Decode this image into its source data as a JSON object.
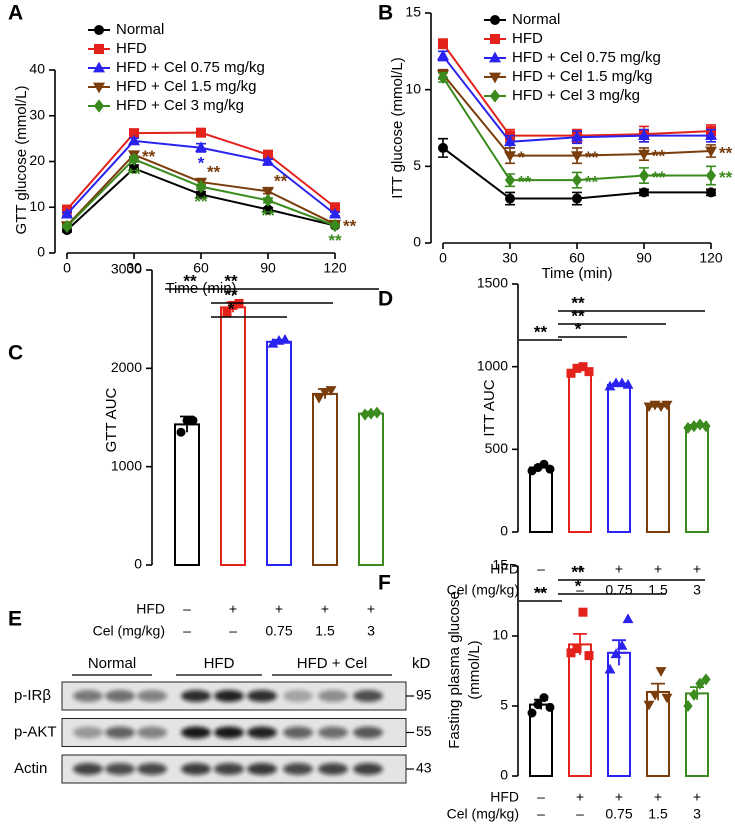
{
  "chart_data": [
    {
      "type": "line",
      "panel": "A",
      "ylabel": "GTT glucose (mmol/L)",
      "xlabel": "Time (min)",
      "x": [
        0,
        30,
        60,
        90,
        120
      ],
      "xlim": [
        0,
        120
      ],
      "xticks": [
        0,
        30,
        60,
        90,
        120
      ],
      "ylim": [
        0,
        40
      ],
      "yticks": [
        0,
        10,
        20,
        30,
        40
      ],
      "legend": "top-left",
      "series": [
        {
          "name": "Normal",
          "color": "#000000",
          "marker": "circle",
          "values": [
            5,
            18.5,
            12.8,
            9.5,
            6
          ],
          "errors": [
            0.4,
            0.7,
            0.6,
            0.4,
            0.3
          ]
        },
        {
          "name": "HFD",
          "color": "#e3221b",
          "marker": "square",
          "values": [
            9.5,
            26.2,
            26.3,
            21.5,
            10
          ],
          "errors": [
            0.4,
            0.6,
            0.5,
            0.5,
            0.4
          ]
        },
        {
          "name": "HFD + Cel 0.75 mg/kg",
          "color": "#2a23f0",
          "marker": "triangle",
          "values": [
            8.5,
            24.5,
            23,
            20,
            8.5
          ],
          "errors": [
            0.4,
            0.6,
            0.9,
            0.5,
            0.4
          ]
        },
        {
          "name": "HFD + Cel 1.5 mg/kg",
          "color": "#7a3d0c",
          "marker": "triangle-down",
          "values": [
            6,
            21.5,
            15.5,
            13.5,
            6.3
          ],
          "errors": [
            0.4,
            0.7,
            0.6,
            0.5,
            0.3
          ]
        },
        {
          "name": "HFD + Cel 3 mg/kg",
          "color": "#3a8a1e",
          "marker": "diamond",
          "values": [
            5.8,
            20.5,
            14.5,
            11.5,
            6
          ],
          "errors": [
            0.3,
            0.6,
            0.5,
            0.5,
            0.3
          ]
        }
      ],
      "annotations": [
        {
          "text": "**",
          "series": 3,
          "index": 1,
          "side": "right"
        },
        {
          "text": "**",
          "series": 4,
          "index": 1,
          "side": "below"
        },
        {
          "text": "*",
          "series": 2,
          "index": 2,
          "side": "below"
        },
        {
          "text": "**",
          "series": 3,
          "index": 2,
          "side": "above"
        },
        {
          "text": "**",
          "series": 4,
          "index": 2,
          "side": "below"
        },
        {
          "text": "**",
          "series": 3,
          "index": 3,
          "side": "above"
        },
        {
          "text": "**",
          "series": 4,
          "index": 3,
          "side": "below"
        },
        {
          "text": "**",
          "series": 3,
          "index": 4,
          "side": "right"
        },
        {
          "text": "**",
          "series": 4,
          "index": 4,
          "side": "below"
        }
      ]
    },
    {
      "type": "line",
      "panel": "B",
      "ylabel": "ITT glucose (mmol/L)",
      "xlabel": "Time (min)",
      "x": [
        0,
        30,
        60,
        90,
        120
      ],
      "xlim": [
        0,
        120
      ],
      "xticks": [
        0,
        30,
        60,
        90,
        120
      ],
      "ylim": [
        0,
        15
      ],
      "yticks": [
        0,
        5,
        10,
        15
      ],
      "legend": "top-left",
      "series": [
        {
          "name": "Normal",
          "color": "#000000",
          "marker": "circle",
          "values": [
            6.2,
            2.9,
            2.9,
            3.3,
            3.3
          ],
          "errors": [
            0.6,
            0.4,
            0.4,
            0.2,
            0.2
          ]
        },
        {
          "name": "HFD",
          "color": "#e3221b",
          "marker": "square",
          "values": [
            13,
            7,
            7,
            7.1,
            7.3
          ],
          "errors": [
            0.3,
            0.4,
            0.4,
            0.5,
            0.4
          ]
        },
        {
          "name": "HFD + Cel 0.75 mg/kg",
          "color": "#2a23f0",
          "marker": "triangle",
          "values": [
            12.2,
            6.6,
            6.9,
            7,
            7
          ],
          "errors": [
            0.3,
            0.4,
            0.4,
            0.4,
            0.4
          ]
        },
        {
          "name": "HFD + Cel 1.5 mg/kg",
          "color": "#7a3d0c",
          "marker": "triangle-down",
          "values": [
            11,
            5.7,
            5.7,
            5.8,
            6
          ],
          "errors": [
            0.3,
            0.5,
            0.5,
            0.4,
            0.4
          ]
        },
        {
          "name": "HFD + Cel 3 mg/kg",
          "color": "#3a8a1e",
          "marker": "diamond",
          "values": [
            10.8,
            4.1,
            4.1,
            4.4,
            4.4
          ],
          "errors": [
            0.3,
            0.4,
            0.5,
            0.5,
            0.6
          ]
        }
      ],
      "annotations": [
        {
          "text": "*",
          "series": 3,
          "index": 1,
          "side": "right"
        },
        {
          "text": "**",
          "series": 4,
          "index": 1,
          "side": "right"
        },
        {
          "text": "**",
          "series": 3,
          "index": 2,
          "side": "right"
        },
        {
          "text": "**",
          "series": 4,
          "index": 2,
          "side": "right"
        },
        {
          "text": "**",
          "series": 3,
          "index": 3,
          "side": "right"
        },
        {
          "text": "**",
          "series": 4,
          "index": 3,
          "side": "right"
        },
        {
          "text": "**",
          "series": 3,
          "index": 4,
          "side": "right"
        },
        {
          "text": "**",
          "series": 4,
          "index": 4,
          "side": "right"
        }
      ]
    },
    {
      "type": "bar",
      "panel": "C",
      "ylabel": "GTT AUC",
      "ylim": [
        0,
        3000
      ],
      "yticks": [
        0,
        1000,
        2000,
        3000
      ],
      "colors": [
        "#000000",
        "#e3221b",
        "#2a23f0",
        "#7a3d0c",
        "#3a8a1e"
      ],
      "markers": [
        "circle",
        "square",
        "triangle",
        "triangle-down",
        "diamond"
      ],
      "values": [
        1430,
        2620,
        2270,
        1740,
        1540
      ],
      "errors": [
        80,
        50,
        20,
        50,
        20
      ],
      "points": [
        [
          1350,
          1470,
          1470
        ],
        [
          2570,
          2640,
          2660
        ],
        [
          2250,
          2280,
          2290
        ],
        [
          1700,
          1760,
          1780
        ],
        [
          1530,
          1540,
          1550
        ]
      ],
      "rows": [
        {
          "label": "HFD",
          "values": [
            "–",
            "+",
            "+",
            "+",
            "+"
          ]
        },
        {
          "label": "Cel (mg/kg)",
          "values": [
            "–",
            "–",
            0.75,
            1.5,
            3
          ]
        }
      ],
      "comparisons": [
        {
          "from": 0,
          "to": 1,
          "label": "**"
        },
        {
          "from": 1,
          "to": 2,
          "label": "*"
        },
        {
          "from": 1,
          "to": 3,
          "label": "**"
        },
        {
          "from": 1,
          "to": 4,
          "label": "**"
        }
      ]
    },
    {
      "type": "bar",
      "panel": "D",
      "ylabel": "ITT AUC",
      "ylim": [
        0,
        1500
      ],
      "yticks": [
        0,
        500,
        1000,
        1500
      ],
      "colors": [
        "#000000",
        "#e3221b",
        "#2a23f0",
        "#7a3d0c",
        "#3a8a1e"
      ],
      "markers": [
        "circle",
        "square",
        "triangle",
        "triangle-down",
        "diamond"
      ],
      "values": [
        390,
        980,
        890,
        760,
        640
      ],
      "errors": [
        12,
        12,
        8,
        6,
        8
      ],
      "points": [
        [
          370,
          390,
          410,
          380
        ],
        [
          960,
          990,
          1000,
          970
        ],
        [
          880,
          900,
          900,
          890
        ],
        [
          760,
          770,
          760,
          770
        ],
        [
          630,
          640,
          650,
          640
        ]
      ],
      "rows": [
        {
          "label": "HFD",
          "values": [
            "–",
            "+",
            "+",
            "+",
            "+"
          ]
        },
        {
          "label": "Cel (mg/kg)",
          "values": [
            "–",
            "–",
            0.75,
            1.5,
            3
          ]
        }
      ],
      "comparisons": [
        {
          "from": 0,
          "to": 1,
          "label": "**"
        },
        {
          "from": 1,
          "to": 2,
          "label": "*"
        },
        {
          "from": 1,
          "to": 3,
          "label": "**"
        },
        {
          "from": 1,
          "to": 4,
          "label": "**"
        }
      ]
    },
    {
      "type": "bar",
      "panel": "F",
      "ylabel": [
        "Fasting plasma glucose",
        "(mmol/L)"
      ],
      "ylim": [
        0,
        15
      ],
      "yticks": [
        0,
        5,
        10,
        15
      ],
      "colors": [
        "#000000",
        "#e3221b",
        "#2a23f0",
        "#7a3d0c",
        "#3a8a1e"
      ],
      "markers": [
        "circle",
        "square",
        "triangle",
        "triangle-down",
        "diamond"
      ],
      "values": [
        5.1,
        9.4,
        8.8,
        6,
        5.9
      ],
      "errors": [
        0.35,
        0.75,
        0.9,
        0.6,
        0.45
      ],
      "points": [
        [
          4.5,
          5.1,
          5.6,
          4.9
        ],
        [
          8.8,
          9.1,
          11.7,
          8.6
        ],
        [
          7.6,
          8.7,
          9.3,
          11.2
        ],
        [
          5.1,
          5.8,
          7.5,
          5.6
        ],
        [
          5.0,
          5.8,
          6.6,
          6.9
        ]
      ],
      "rows": [
        {
          "label": "HFD",
          "values": [
            "–",
            "+",
            "+",
            "+",
            "+"
          ]
        },
        {
          "label": "Cel (mg/kg)",
          "values": [
            "–",
            "–",
            0.75,
            1.5,
            3
          ]
        }
      ],
      "comparisons": [
        {
          "from": 0,
          "to": 1,
          "label": "**"
        },
        {
          "from": 1,
          "to": 3,
          "label": "*"
        },
        {
          "from": 1,
          "to": 4,
          "label": "**"
        }
      ]
    }
  ],
  "blot": {
    "panel": "E",
    "groups": [
      "Normal",
      "HFD",
      "HFD + Cel"
    ],
    "kd_header": "kD",
    "rows": [
      {
        "label": "p-IRβ",
        "kd": 95
      },
      {
        "label": "p-AKT",
        "kd": 55
      },
      {
        "label": "Actin",
        "kd": 43
      }
    ]
  }
}
